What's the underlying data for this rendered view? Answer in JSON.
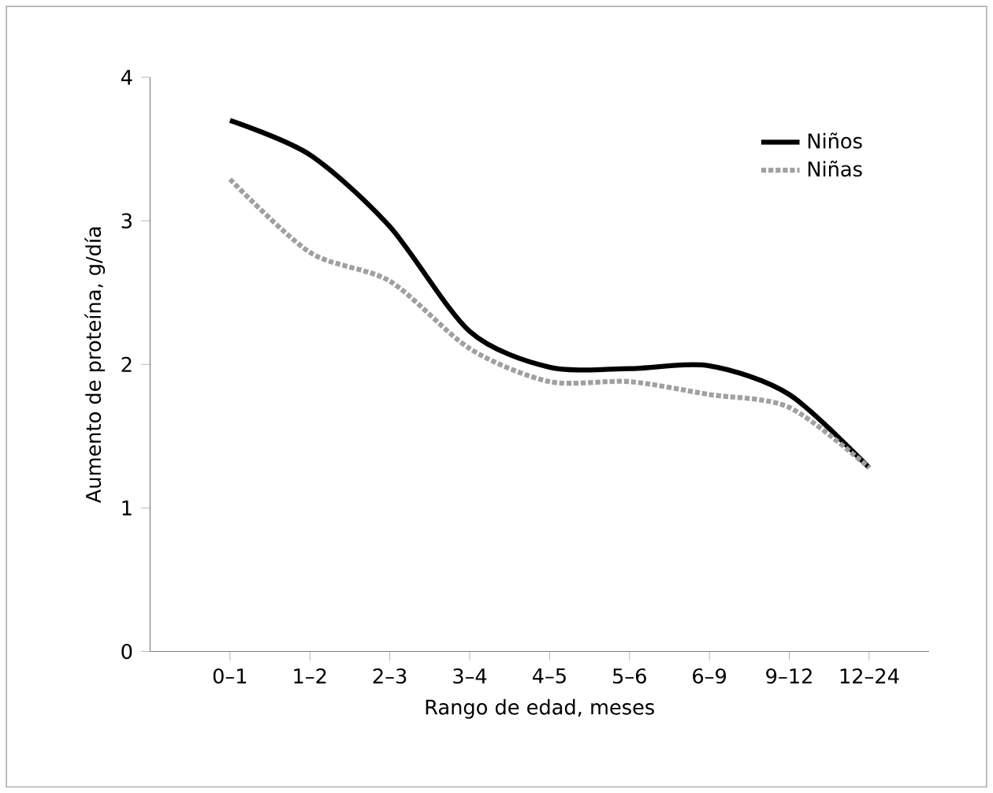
{
  "chart_data": {
    "type": "line",
    "xlabel": "Rango de edad, meses",
    "ylabel": "Aumento de proteína, g/día",
    "categories": [
      "0–1",
      "1–2",
      "2–3",
      "3–4",
      "4–5",
      "5–6",
      "6–9",
      "9–12",
      "12–24"
    ],
    "series": [
      {
        "name": "Niños",
        "color": "#000000",
        "line_style": "solid",
        "values": [
          3.7,
          3.46,
          2.96,
          2.23,
          1.98,
          1.97,
          1.99,
          1.79,
          1.28
        ]
      },
      {
        "name": "Niñas",
        "color": "#a0a0a0",
        "line_style": "dotted",
        "values": [
          3.29,
          2.78,
          2.58,
          2.11,
          1.88,
          1.88,
          1.79,
          1.7,
          1.28
        ]
      }
    ],
    "ylim": [
      0,
      4
    ],
    "yticks": [
      0,
      1,
      2,
      3,
      4
    ],
    "grid": false,
    "legend": "top right",
    "marker": "none"
  }
}
